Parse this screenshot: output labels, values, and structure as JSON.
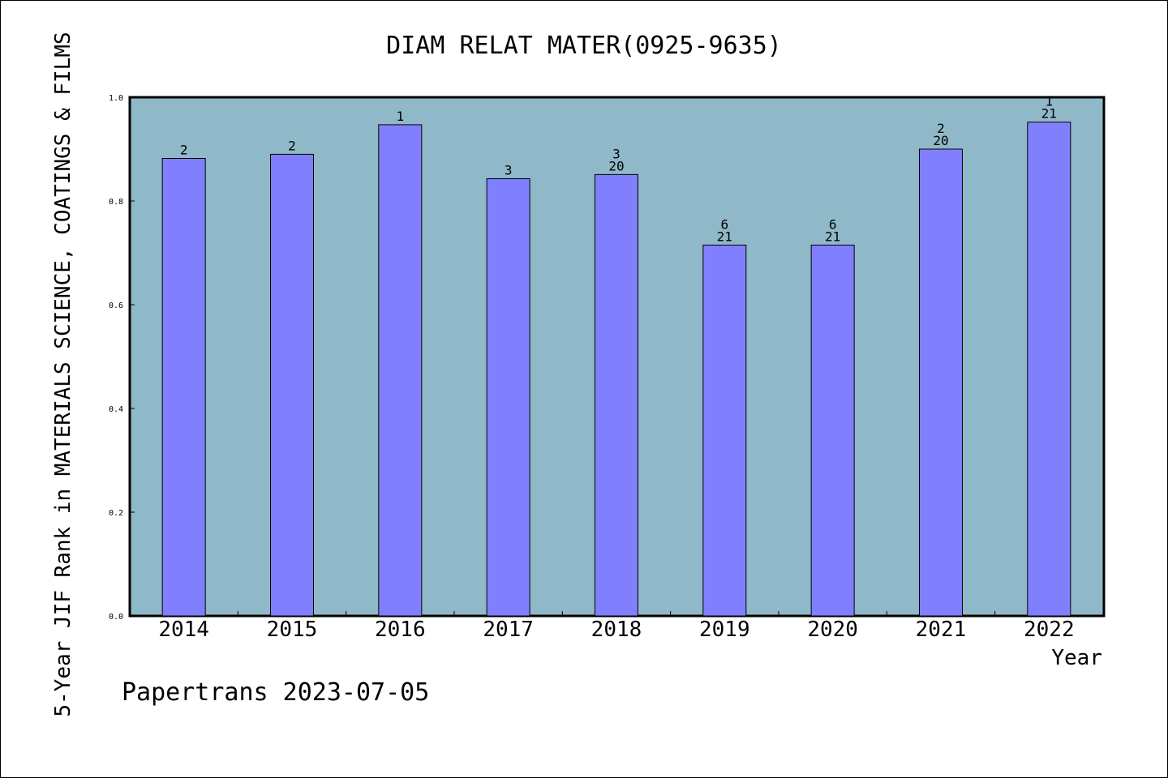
{
  "chart_data": {
    "type": "bar",
    "title": "DIAM RELAT MATER(0925-9635)",
    "xlabel": "Year",
    "ylabel": "5-Year JIF Rank in MATERIALS SCIENCE, COATINGS & FILMS",
    "categories": [
      "2014",
      "2015",
      "2016",
      "2017",
      "2018",
      "2019",
      "2020",
      "2021",
      "2022"
    ],
    "values": [
      0.882,
      0.89,
      0.947,
      0.843,
      0.851,
      0.715,
      0.715,
      0.9,
      0.952
    ],
    "bar_labels": [
      [
        "2"
      ],
      [
        "2"
      ],
      [
        "1"
      ],
      [
        "3"
      ],
      [
        "3",
        "20"
      ],
      [
        "6",
        "21"
      ],
      [
        "6",
        "21"
      ],
      [
        "2",
        "20"
      ],
      [
        "1",
        "21"
      ]
    ],
    "ylim": [
      0,
      1.0
    ],
    "yticks": [
      "0.0",
      "0.2",
      "0.4",
      "0.6",
      "0.8",
      "1.0"
    ],
    "grid": false,
    "colors": {
      "bar": "#8080ff",
      "plot_bg": "#8fb8c8",
      "axis": "#000000"
    }
  },
  "footer": {
    "watermark": "Papertrans 2023-07-05"
  }
}
